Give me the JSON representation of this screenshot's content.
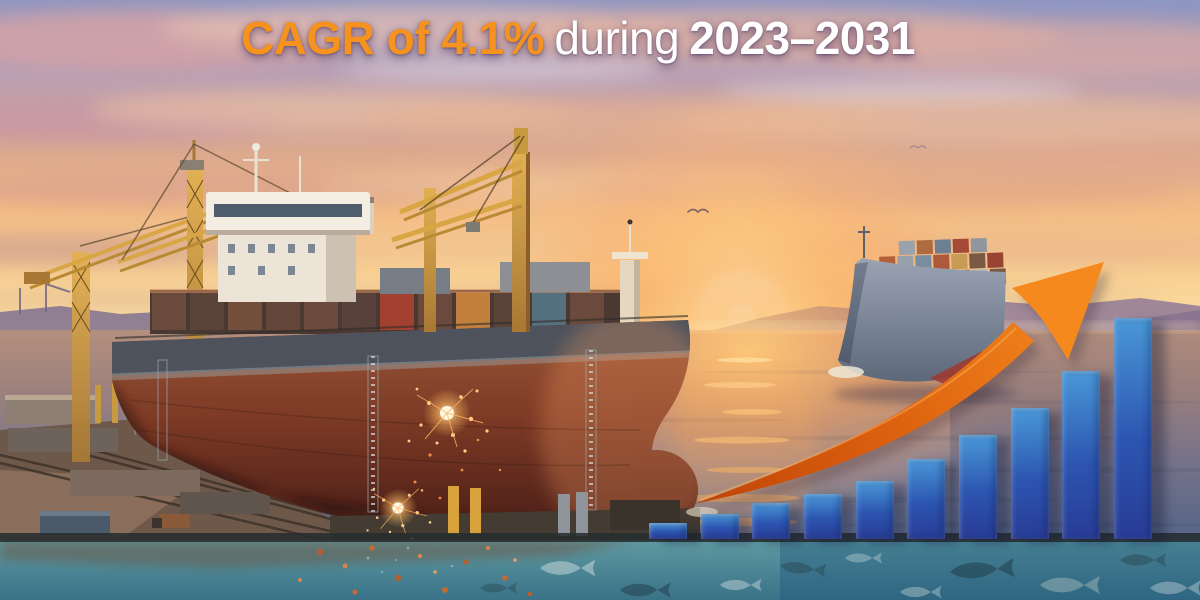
{
  "title": {
    "cagr": "CAGR of 4.1%",
    "during": "during",
    "years": "2023–2031"
  },
  "chart_data": {
    "type": "bar",
    "title": "Stylized growth bar chart with upward trend arrow",
    "categories": [],
    "values": [
      16,
      25,
      36,
      45,
      58,
      80,
      104,
      131,
      168,
      221
    ],
    "unit": "relative bar height (px, estimated from image; no axis labels shown)",
    "ylim": [
      0,
      221
    ],
    "grid": false,
    "legend": false,
    "annotations": [
      "orange swoosh arrow rising over the bars"
    ],
    "bar_color_top": "#4a98d8",
    "bar_color_mid": "#2c55b0",
    "bar_color_bottom": "#283c96"
  },
  "colors": {
    "accent_orange": "#f6921e",
    "title_white": "#ffffff",
    "arrow_tail": "#bf4407",
    "arrow_head": "#f78f1e",
    "underwater_teal": "#4f8d99"
  },
  "scene": {
    "description": "Sunset harbor photo-illustration: cargo ship in shipyard dry dock with cranes on the left, container ship at sea on the right, low sun over the ocean, welding sparks, and an underwater strip with fish along the bottom"
  }
}
